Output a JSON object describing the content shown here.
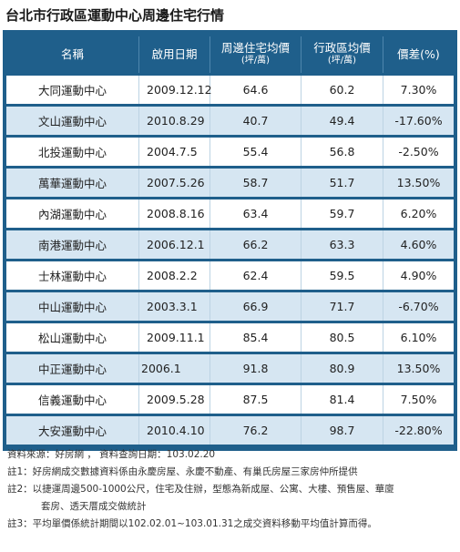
{
  "title": "台北市行政區運動中心周邊住宅行情",
  "table": {
    "headers": {
      "name": "名稱",
      "date": "啟用日期",
      "nearby": "周邊住宅均價",
      "nearby_unit": "(坪/萬)",
      "district": "行政區均價",
      "district_unit": "(坪/萬)",
      "diff": "價差(%)"
    },
    "rows": [
      {
        "name": "大同運動中心",
        "date": "2009.12.12",
        "nearby": "64.6",
        "district": "60.2",
        "diff": "7.30%"
      },
      {
        "name": "文山運動中心",
        "date": "2010.8.29",
        "nearby": "40.7",
        "district": "49.4",
        "diff": "-17.60%"
      },
      {
        "name": "北投運動中心",
        "date": "2004.7.5",
        "nearby": "55.4",
        "district": "56.8",
        "diff": "-2.50%"
      },
      {
        "name": "萬華運動中心",
        "date": "2007.5.26",
        "nearby": "58.7",
        "district": "51.7",
        "diff": "13.50%"
      },
      {
        "name": "內湖運動中心",
        "date": "2008.8.16",
        "nearby": "63.4",
        "district": "59.7",
        "diff": "6.20%"
      },
      {
        "name": "南港運動中心",
        "date": "2006.12.1",
        "nearby": "66.2",
        "district": "63.3",
        "diff": "4.60%"
      },
      {
        "name": "士林運動中心",
        "date": "2008.2.2",
        "nearby": "62.4",
        "district": "59.5",
        "diff": "4.90%"
      },
      {
        "name": "中山運動中心",
        "date": "2003.3.1",
        "nearby": "66.9",
        "district": "71.7",
        "diff": "-6.70%"
      },
      {
        "name": "松山運動中心",
        "date": "2009.11.1",
        "nearby": "85.4",
        "district": "80.5",
        "diff": "6.10%"
      },
      {
        "name": "中正運動中心",
        "date": "2006.1",
        "nearby": "91.8",
        "district": "80.9",
        "diff": "13.50%"
      },
      {
        "name": "信義運動中心",
        "date": "2009.5.28",
        "nearby": "87.5",
        "district": "81.4",
        "diff": "7.50%"
      },
      {
        "name": "大安運動中心",
        "date": "2010.4.10",
        "nearby": "76.2",
        "district": "98.7",
        "diff": "-22.80%"
      }
    ]
  },
  "notes": {
    "source": "資料來源：好房網 ， 資料查詢日期：103.02.20",
    "note1": "註1：好房網成交數據資料係由永慶房屋、永慶不動產、有巢氏房屋三家房仲所提供",
    "note2_line1": "註2：以捷運周邊500-1000公尺，住宅及住辦，型態為新成屋、公寓、大樓、預售屋、華廈",
    "note2_line2": "套房、透天厝成交做統計",
    "note3": "註3：平均單價係統計期間以102.02.01~103.01.31之成交資料移動平均值計算而得。"
  },
  "colors": {
    "header_bg": "#1f5f8b",
    "row_alt": "#d6e6f2",
    "row_base": "#ffffff"
  }
}
